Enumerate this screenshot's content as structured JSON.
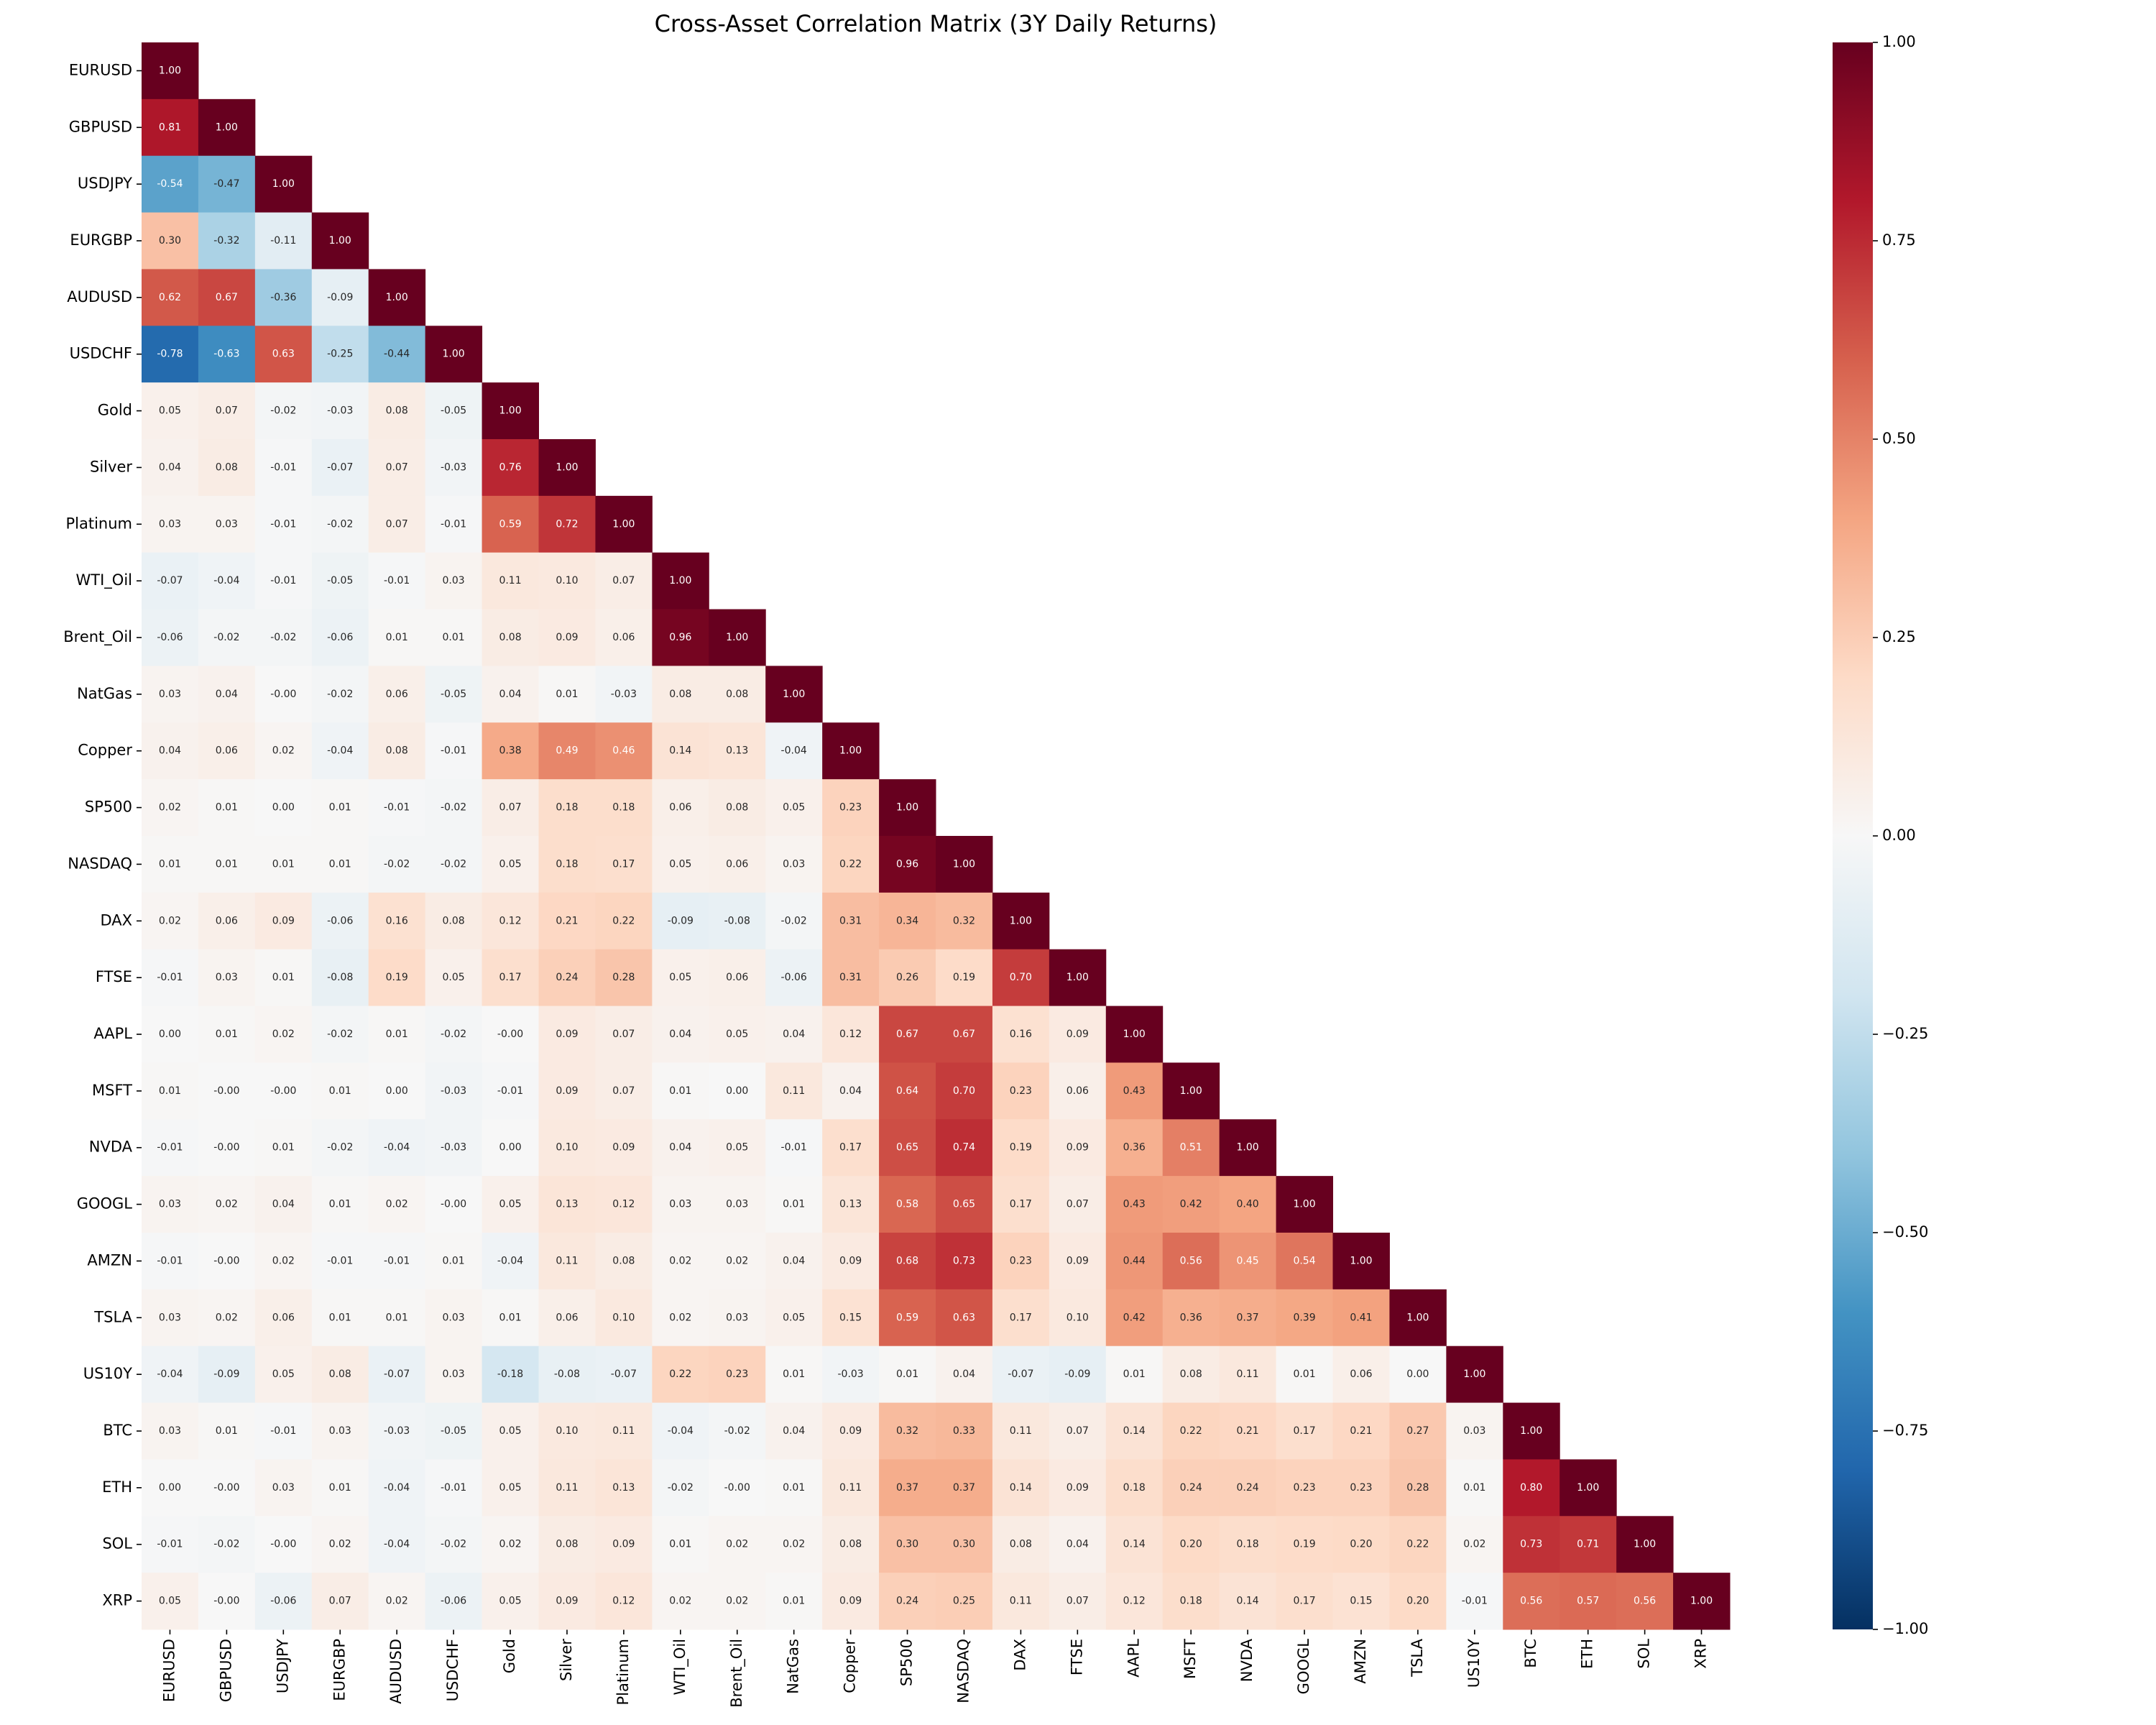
{
  "chart_data": {
    "type": "heatmap",
    "title": "Cross-Asset Correlation Matrix (3Y Daily Returns)",
    "categories": [
      "EURUSD",
      "GBPUSD",
      "USDJPY",
      "EURGBP",
      "AUDUSD",
      "USDCHF",
      "Gold",
      "Silver",
      "Platinum",
      "WTI_Oil",
      "Brent_Oil",
      "NatGas",
      "Copper",
      "SP500",
      "NASDAQ",
      "DAX",
      "FTSE",
      "AAPL",
      "MSFT",
      "NVDA",
      "GOOGL",
      "AMZN",
      "TSLA",
      "US10Y",
      "BTC",
      "ETH",
      "SOL",
      "XRP"
    ],
    "values": [
      [
        1
      ],
      [
        0.81,
        1
      ],
      [
        -0.54,
        -0.47,
        1
      ],
      [
        0.3,
        -0.32,
        -0.11,
        1
      ],
      [
        0.62,
        0.67,
        -0.36,
        -0.09,
        1
      ],
      [
        -0.78,
        -0.63,
        0.63,
        -0.25,
        -0.44,
        1
      ],
      [
        0.05,
        0.07,
        -0.02,
        -0.03,
        0.08,
        -0.05,
        1
      ],
      [
        0.04,
        0.08,
        -0.01,
        -0.07,
        0.07,
        -0.03,
        0.76,
        1
      ],
      [
        0.03,
        0.03,
        -0.01,
        -0.02,
        0.07,
        -0.01,
        0.59,
        0.72,
        1
      ],
      [
        -0.07,
        -0.04,
        -0.01,
        -0.05,
        -0.01,
        0.03,
        0.11,
        0.1,
        0.07,
        1
      ],
      [
        -0.06,
        -0.02,
        -0.02,
        -0.06,
        0.01,
        0.01,
        0.08,
        0.09,
        0.06,
        0.96,
        1
      ],
      [
        0.03,
        0.04,
        0,
        -0.02,
        0.06,
        -0.05,
        0.04,
        0.01,
        -0.03,
        0.08,
        0.08,
        1
      ],
      [
        0.04,
        0.06,
        0.02,
        -0.04,
        0.08,
        -0.01,
        0.38,
        0.49,
        0.46,
        0.14,
        0.13,
        -0.04,
        1
      ],
      [
        0.02,
        0.01,
        0,
        0.01,
        -0.01,
        -0.02,
        0.07,
        0.18,
        0.18,
        0.06,
        0.08,
        0.05,
        0.23,
        1
      ],
      [
        0.01,
        0.01,
        0.01,
        0.01,
        -0.02,
        -0.02,
        0.05,
        0.18,
        0.17,
        0.05,
        0.06,
        0.03,
        0.22,
        0.96,
        1
      ],
      [
        0.02,
        0.06,
        0.09,
        -0.06,
        0.16,
        0.08,
        0.12,
        0.21,
        0.22,
        -0.09,
        -0.08,
        -0.02,
        0.31,
        0.34,
        0.32,
        1
      ],
      [
        -0.01,
        0.03,
        0.01,
        -0.08,
        0.19,
        0.05,
        0.17,
        0.24,
        0.28,
        0.05,
        0.06,
        -0.06,
        0.31,
        0.26,
        0.19,
        0.7,
        1
      ],
      [
        0,
        0.01,
        0.02,
        -0.02,
        0.01,
        -0.02,
        0,
        0.09,
        0.07,
        0.04,
        0.05,
        0.04,
        0.12,
        0.67,
        0.67,
        0.16,
        0.09,
        1
      ],
      [
        0.01,
        0,
        0,
        0.01,
        0,
        -0.03,
        -0.01,
        0.09,
        0.07,
        0.01,
        0,
        0.11,
        0.04,
        0.64,
        0.7,
        0.23,
        0.06,
        0.43,
        1
      ],
      [
        -0.01,
        0,
        0.01,
        -0.02,
        -0.04,
        -0.03,
        0,
        0.1,
        0.09,
        0.04,
        0.05,
        -0.01,
        0.17,
        0.65,
        0.74,
        0.19,
        0.09,
        0.36,
        0.51,
        1
      ],
      [
        0.03,
        0.02,
        0.04,
        0.01,
        0.02,
        0,
        0.05,
        0.13,
        0.12,
        0.03,
        0.03,
        0.01,
        0.13,
        0.58,
        0.65,
        0.17,
        0.07,
        0.43,
        0.42,
        0.4,
        1
      ],
      [
        -0.01,
        0,
        0.02,
        -0.01,
        -0.01,
        0.01,
        -0.04,
        0.11,
        0.08,
        0.02,
        0.02,
        0.04,
        0.09,
        0.68,
        0.73,
        0.23,
        0.09,
        0.44,
        0.56,
        0.45,
        0.54,
        1
      ],
      [
        0.03,
        0.02,
        0.06,
        0.01,
        0.01,
        0.03,
        0.01,
        0.06,
        0.1,
        0.02,
        0.03,
        0.05,
        0.15,
        0.59,
        0.63,
        0.17,
        0.1,
        0.42,
        0.36,
        0.37,
        0.39,
        0.41,
        1
      ],
      [
        -0.04,
        -0.09,
        0.05,
        0.08,
        -0.07,
        0.03,
        -0.18,
        -0.08,
        -0.07,
        0.22,
        0.23,
        0.01,
        -0.03,
        0.01,
        0.04,
        -0.07,
        -0.09,
        0.01,
        0.08,
        0.11,
        0.01,
        0.06,
        0,
        1
      ],
      [
        0.03,
        0.01,
        -0.01,
        0.03,
        -0.03,
        -0.05,
        0.05,
        0.1,
        0.11,
        -0.04,
        -0.02,
        0.04,
        0.09,
        0.32,
        0.33,
        0.11,
        0.07,
        0.14,
        0.22,
        0.21,
        0.17,
        0.21,
        0.27,
        0.03,
        1
      ],
      [
        0,
        0,
        0.03,
        0.01,
        -0.04,
        -0.01,
        0.05,
        0.11,
        0.13,
        -0.02,
        0,
        0.01,
        0.11,
        0.37,
        0.37,
        0.14,
        0.09,
        0.18,
        0.24,
        0.24,
        0.23,
        0.23,
        0.28,
        0.01,
        0.8,
        1
      ],
      [
        -0.01,
        -0.02,
        0,
        0.02,
        -0.04,
        -0.02,
        0.02,
        0.08,
        0.09,
        0.01,
        0.02,
        0.02,
        0.08,
        0.3,
        0.3,
        0.08,
        0.04,
        0.14,
        0.2,
        0.18,
        0.19,
        0.2,
        0.22,
        0.02,
        0.73,
        0.71,
        1
      ],
      [
        0.05,
        0,
        -0.06,
        0.07,
        0.02,
        -0.06,
        0.05,
        0.09,
        0.12,
        0.02,
        0.02,
        0.01,
        0.09,
        0.24,
        0.25,
        0.11,
        0.07,
        0.12,
        0.18,
        0.14,
        0.17,
        0.15,
        0.2,
        -0.01,
        0.56,
        0.57,
        0.56,
        1
      ]
    ],
    "value_labels": [
      [
        "1.00"
      ],
      [
        "0.81",
        "1.00"
      ],
      [
        "-0.54",
        "-0.47",
        "1.00"
      ],
      [
        "0.30",
        "-0.32",
        "-0.11",
        "1.00"
      ],
      [
        "0.62",
        "0.67",
        "-0.36",
        "-0.09",
        "1.00"
      ],
      [
        "-0.78",
        "-0.63",
        "0.63",
        "-0.25",
        "-0.44",
        "1.00"
      ],
      [
        "0.05",
        "0.07",
        "-0.02",
        "-0.03",
        "0.08",
        "-0.05",
        "1.00"
      ],
      [
        "0.04",
        "0.08",
        "-0.01",
        "-0.07",
        "0.07",
        "-0.03",
        "0.76",
        "1.00"
      ],
      [
        "0.03",
        "0.03",
        "-0.01",
        "-0.02",
        "0.07",
        "-0.01",
        "0.59",
        "0.72",
        "1.00"
      ],
      [
        "-0.07",
        "-0.04",
        "-0.01",
        "-0.05",
        "-0.01",
        "0.03",
        "0.11",
        "0.10",
        "0.07",
        "1.00"
      ],
      [
        "-0.06",
        "-0.02",
        "-0.02",
        "-0.06",
        "0.01",
        "0.01",
        "0.08",
        "0.09",
        "0.06",
        "0.96",
        "1.00"
      ],
      [
        "0.03",
        "0.04",
        "-0.00",
        "-0.02",
        "0.06",
        "-0.05",
        "0.04",
        "0.01",
        "-0.03",
        "0.08",
        "0.08",
        "1.00"
      ],
      [
        "0.04",
        "0.06",
        "0.02",
        "-0.04",
        "0.08",
        "-0.01",
        "0.38",
        "0.49",
        "0.46",
        "0.14",
        "0.13",
        "-0.04",
        "1.00"
      ],
      [
        "0.02",
        "0.01",
        "0.00",
        "0.01",
        "-0.01",
        "-0.02",
        "0.07",
        "0.18",
        "0.18",
        "0.06",
        "0.08",
        "0.05",
        "0.23",
        "1.00"
      ],
      [
        "0.01",
        "0.01",
        "0.01",
        "0.01",
        "-0.02",
        "-0.02",
        "0.05",
        "0.18",
        "0.17",
        "0.05",
        "0.06",
        "0.03",
        "0.22",
        "0.96",
        "1.00"
      ],
      [
        "0.02",
        "0.06",
        "0.09",
        "-0.06",
        "0.16",
        "0.08",
        "0.12",
        "0.21",
        "0.22",
        "-0.09",
        "-0.08",
        "-0.02",
        "0.31",
        "0.34",
        "0.32",
        "1.00"
      ],
      [
        "-0.01",
        "0.03",
        "0.01",
        "-0.08",
        "0.19",
        "0.05",
        "0.17",
        "0.24",
        "0.28",
        "0.05",
        "0.06",
        "-0.06",
        "0.31",
        "0.26",
        "0.19",
        "0.70",
        "1.00"
      ],
      [
        "0.00",
        "0.01",
        "0.02",
        "-0.02",
        "0.01",
        "-0.02",
        "-0.00",
        "0.09",
        "0.07",
        "0.04",
        "0.05",
        "0.04",
        "0.12",
        "0.67",
        "0.67",
        "0.16",
        "0.09",
        "1.00"
      ],
      [
        "0.01",
        "-0.00",
        "-0.00",
        "0.01",
        "0.00",
        "-0.03",
        "-0.01",
        "0.09",
        "0.07",
        "0.01",
        "0.00",
        "0.11",
        "0.04",
        "0.64",
        "0.70",
        "0.23",
        "0.06",
        "0.43",
        "1.00"
      ],
      [
        "-0.01",
        "-0.00",
        "0.01",
        "-0.02",
        "-0.04",
        "-0.03",
        "0.00",
        "0.10",
        "0.09",
        "0.04",
        "0.05",
        "-0.01",
        "0.17",
        "0.65",
        "0.74",
        "0.19",
        "0.09",
        "0.36",
        "0.51",
        "1.00"
      ],
      [
        "0.03",
        "0.02",
        "0.04",
        "0.01",
        "0.02",
        "-0.00",
        "0.05",
        "0.13",
        "0.12",
        "0.03",
        "0.03",
        "0.01",
        "0.13",
        "0.58",
        "0.65",
        "0.17",
        "0.07",
        "0.43",
        "0.42",
        "0.40",
        "1.00"
      ],
      [
        "-0.01",
        "-0.00",
        "0.02",
        "-0.01",
        "-0.01",
        "0.01",
        "-0.04",
        "0.11",
        "0.08",
        "0.02",
        "0.02",
        "0.04",
        "0.09",
        "0.68",
        "0.73",
        "0.23",
        "0.09",
        "0.44",
        "0.56",
        "0.45",
        "0.54",
        "1.00"
      ],
      [
        "0.03",
        "0.02",
        "0.06",
        "0.01",
        "0.01",
        "0.03",
        "0.01",
        "0.06",
        "0.10",
        "0.02",
        "0.03",
        "0.05",
        "0.15",
        "0.59",
        "0.63",
        "0.17",
        "0.10",
        "0.42",
        "0.36",
        "0.37",
        "0.39",
        "0.41",
        "1.00"
      ],
      [
        "-0.04",
        "-0.09",
        "0.05",
        "0.08",
        "-0.07",
        "0.03",
        "-0.18",
        "-0.08",
        "-0.07",
        "0.22",
        "0.23",
        "0.01",
        "-0.03",
        "0.01",
        "0.04",
        "-0.07",
        "-0.09",
        "0.01",
        "0.08",
        "0.11",
        "0.01",
        "0.06",
        "0.00",
        "1.00"
      ],
      [
        "0.03",
        "0.01",
        "-0.01",
        "0.03",
        "-0.03",
        "-0.05",
        "0.05",
        "0.10",
        "0.11",
        "-0.04",
        "-0.02",
        "0.04",
        "0.09",
        "0.32",
        "0.33",
        "0.11",
        "0.07",
        "0.14",
        "0.22",
        "0.21",
        "0.17",
        "0.21",
        "0.27",
        "0.03",
        "1.00"
      ],
      [
        "0.00",
        "-0.00",
        "0.03",
        "0.01",
        "-0.04",
        "-0.01",
        "0.05",
        "0.11",
        "0.13",
        "-0.02",
        "-0.00",
        "0.01",
        "0.11",
        "0.37",
        "0.37",
        "0.14",
        "0.09",
        "0.18",
        "0.24",
        "0.24",
        "0.23",
        "0.23",
        "0.28",
        "0.01",
        "0.80",
        "1.00"
      ],
      [
        "-0.01",
        "-0.02",
        "-0.00",
        "0.02",
        "-0.04",
        "-0.02",
        "0.02",
        "0.08",
        "0.09",
        "0.01",
        "0.02",
        "0.02",
        "0.08",
        "0.30",
        "0.30",
        "0.08",
        "0.04",
        "0.14",
        "0.20",
        "0.18",
        "0.19",
        "0.20",
        "0.22",
        "0.02",
        "0.73",
        "0.71",
        "1.00"
      ],
      [
        "0.05",
        "-0.00",
        "-0.06",
        "0.07",
        "0.02",
        "-0.06",
        "0.05",
        "0.09",
        "0.12",
        "0.02",
        "0.02",
        "0.01",
        "0.09",
        "0.24",
        "0.25",
        "0.11",
        "0.07",
        "0.12",
        "0.18",
        "0.14",
        "0.17",
        "0.15",
        "0.20",
        "-0.01",
        "0.56",
        "0.57",
        "0.56",
        "1.00"
      ]
    ],
    "vlim": [
      -1,
      1
    ],
    "colorbar_ticks": [
      {
        "value": -1,
        "label": "−1.00"
      },
      {
        "value": -0.75,
        "label": "−0.75"
      },
      {
        "value": -0.5,
        "label": "−0.50"
      },
      {
        "value": -0.25,
        "label": "−0.25"
      },
      {
        "value": 0,
        "label": "0.00"
      },
      {
        "value": 0.25,
        "label": "0.25"
      },
      {
        "value": 0.5,
        "label": "0.50"
      },
      {
        "value": 0.75,
        "label": "0.75"
      },
      {
        "value": 1,
        "label": "1.00"
      }
    ],
    "colormap": [
      "#053061",
      "#2166ac",
      "#4393c3",
      "#92c5de",
      "#d1e5f0",
      "#f7f7f7",
      "#fddbc7",
      "#f4a582",
      "#d6604d",
      "#b2182b",
      "#67001f"
    ]
  }
}
